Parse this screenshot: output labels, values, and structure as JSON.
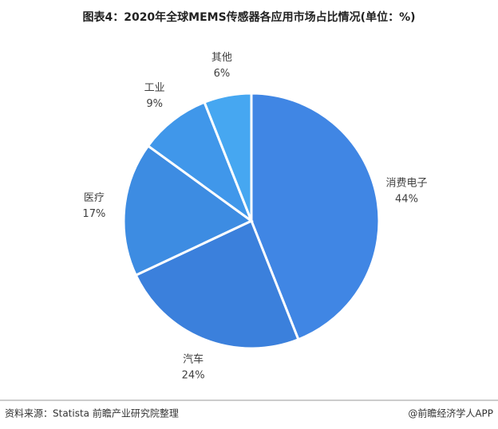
{
  "chart_data": {
    "type": "pie",
    "title": "图表4：2020年全球MEMS传感器各应用市场占比情况(单位：%)",
    "categories": [
      "消费电子",
      "汽车",
      "医疗",
      "工业",
      "其他"
    ],
    "values": [
      44,
      24,
      17,
      9,
      6
    ],
    "value_labels": [
      "44%",
      "24%",
      "17%",
      "9%",
      "6%"
    ],
    "colors": [
      "#4086e4",
      "#3b80dc",
      "#3d8ce2",
      "#4097ea",
      "#46a7f1"
    ],
    "source": "资料来源：Statista 前瞻产业研究院整理",
    "credit": "@前瞻经济学人APP"
  }
}
